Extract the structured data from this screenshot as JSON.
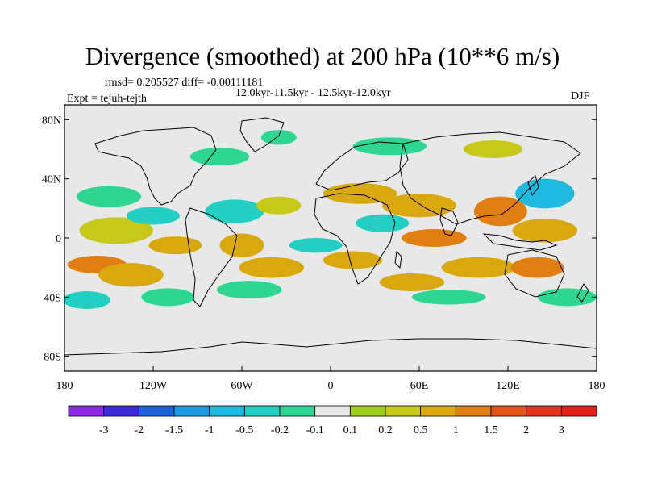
{
  "chart_data": {
    "type": "heatmap",
    "title": "Divergence (smoothed) at 200 hPa (10**6 m/s)",
    "subtitle_stats": "rmsd= 0.205527  diff= -0.00111181",
    "subtitle_period": "12.0kyr-11.5kyr - 12.5kyr-12.0kyr",
    "left_label": "Expt = tejuh-tejth",
    "right_label": "DJF",
    "x_ticks": [
      "180",
      "120W",
      "60W",
      "0",
      "60E",
      "120E",
      "180"
    ],
    "y_ticks": [
      "80N",
      "40N",
      "0",
      "40S",
      "80S"
    ],
    "x_range": [
      -180,
      180
    ],
    "y_range": [
      -90,
      90
    ],
    "colorbar": {
      "labels": [
        "-3",
        "-2",
        "-1.5",
        "-1",
        "-0.5",
        "-0.2",
        "-0.1",
        "0.1",
        "0.2",
        "0.5",
        "1",
        "1.5",
        "2",
        "3"
      ],
      "colors": [
        "#8d2be2",
        "#3a2bd6",
        "#1f63dd",
        "#1a9ae3",
        "#1fb8de",
        "#22cfc2",
        "#2fd692",
        "#e8e8e8",
        "#9ccf1f",
        "#c8c81a",
        "#d9a80e",
        "#e07e12",
        "#e4541a",
        "#e0341c",
        "#e0201a"
      ]
    },
    "anomaly_regions": [
      {
        "lon": -145,
        "lat": 5,
        "rx": 25,
        "ry": 9,
        "value": 0.2
      },
      {
        "lon": -158,
        "lat": -18,
        "rx": 20,
        "ry": 6,
        "value": 1.0
      },
      {
        "lon": -135,
        "lat": -25,
        "rx": 22,
        "ry": 8,
        "value": 0.5
      },
      {
        "lon": -150,
        "lat": 28,
        "rx": 22,
        "ry": 7,
        "value": -0.2
      },
      {
        "lon": -120,
        "lat": 15,
        "rx": 18,
        "ry": 6,
        "value": -0.5
      },
      {
        "lon": -105,
        "lat": -5,
        "rx": 18,
        "ry": 6,
        "value": 0.5
      },
      {
        "lon": -165,
        "lat": -42,
        "rx": 16,
        "ry": 6,
        "value": -0.5
      },
      {
        "lon": -110,
        "lat": -40,
        "rx": 18,
        "ry": 6,
        "value": -0.2
      },
      {
        "lon": -65,
        "lat": 18,
        "rx": 20,
        "ry": 8,
        "value": -0.5
      },
      {
        "lon": -60,
        "lat": -5,
        "rx": 15,
        "ry": 8,
        "value": 0.5
      },
      {
        "lon": -40,
        "lat": -20,
        "rx": 22,
        "ry": 7,
        "value": 0.5
      },
      {
        "lon": -55,
        "lat": -35,
        "rx": 22,
        "ry": 6,
        "value": -0.2
      },
      {
        "lon": -35,
        "lat": 22,
        "rx": 15,
        "ry": 6,
        "value": 0.2
      },
      {
        "lon": -75,
        "lat": 55,
        "rx": 20,
        "ry": 6,
        "value": -0.2
      },
      {
        "lon": -35,
        "lat": 68,
        "rx": 12,
        "ry": 5,
        "value": -0.2
      },
      {
        "lon": 20,
        "lat": 30,
        "rx": 25,
        "ry": 7,
        "value": 0.5
      },
      {
        "lon": 60,
        "lat": 22,
        "rx": 25,
        "ry": 8,
        "value": 0.5
      },
      {
        "lon": 70,
        "lat": 0,
        "rx": 22,
        "ry": 6,
        "value": 1.0
      },
      {
        "lon": 35,
        "lat": 10,
        "rx": 18,
        "ry": 6,
        "value": -0.5
      },
      {
        "lon": 15,
        "lat": -15,
        "rx": 20,
        "ry": 6,
        "value": 0.5
      },
      {
        "lon": 55,
        "lat": -30,
        "rx": 22,
        "ry": 6,
        "value": 0.5
      },
      {
        "lon": 100,
        "lat": -20,
        "rx": 25,
        "ry": 7,
        "value": 0.5
      },
      {
        "lon": 115,
        "lat": 18,
        "rx": 18,
        "ry": 10,
        "value": 1.0
      },
      {
        "lon": 145,
        "lat": 30,
        "rx": 20,
        "ry": 10,
        "value": -1.0
      },
      {
        "lon": 145,
        "lat": 5,
        "rx": 22,
        "ry": 8,
        "value": 0.5
      },
      {
        "lon": 140,
        "lat": -20,
        "rx": 18,
        "ry": 7,
        "value": 1.0
      },
      {
        "lon": 160,
        "lat": -40,
        "rx": 20,
        "ry": 6,
        "value": -0.2
      },
      {
        "lon": 40,
        "lat": 62,
        "rx": 25,
        "ry": 6,
        "value": -0.2
      },
      {
        "lon": 110,
        "lat": 60,
        "rx": 20,
        "ry": 6,
        "value": 0.2
      },
      {
        "lon": 80,
        "lat": -40,
        "rx": 25,
        "ry": 5,
        "value": -0.2
      },
      {
        "lon": -10,
        "lat": -5,
        "rx": 18,
        "ry": 5,
        "value": -0.5
      }
    ]
  }
}
